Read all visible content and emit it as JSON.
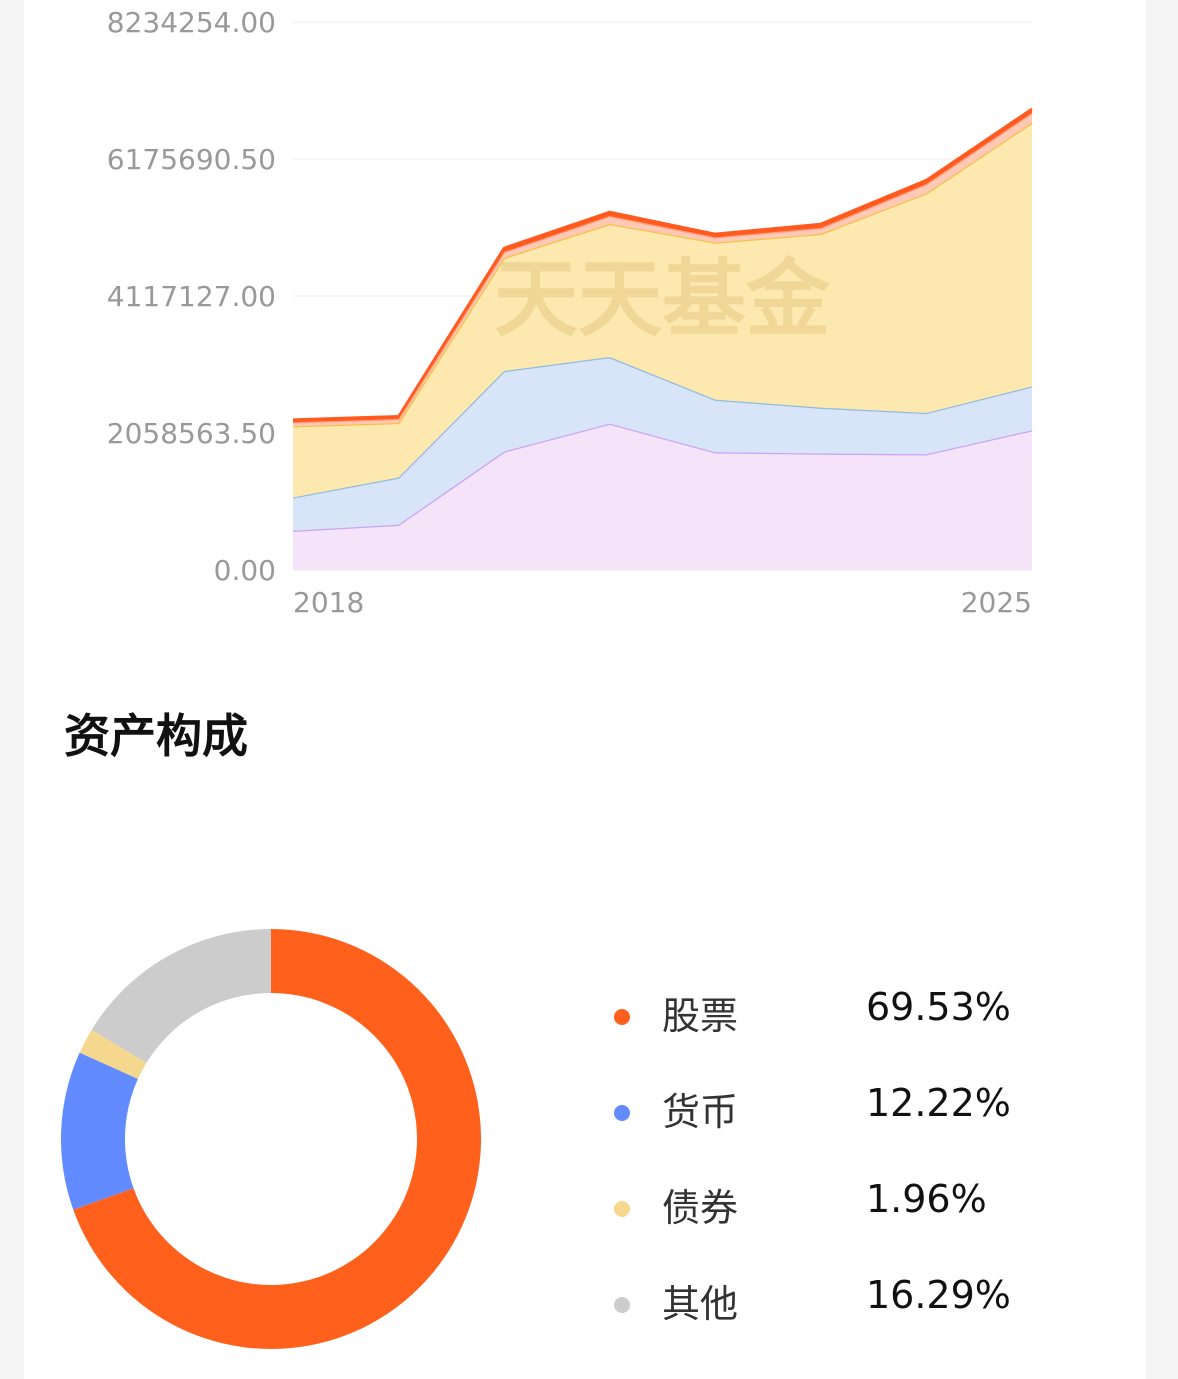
{
  "chart_data": [
    {
      "type": "area",
      "stacked": true,
      "x": [
        2018,
        2019,
        2020,
        2021,
        2022,
        2023,
        2024,
        2025
      ],
      "x_tick_labels": [
        "2018",
        "2025"
      ],
      "y_tick_labels": [
        "8234254.00",
        "6175690.50",
        "4117127.00",
        "2058563.50",
        "0.00"
      ],
      "ylim": [
        0,
        8234254
      ],
      "series": [
        {
          "values": [
            590000,
            680000,
            1780000,
            2200000,
            1770000,
            1750000,
            1740000,
            2100000
          ],
          "color": "#c9a3f5",
          "fill": "#f5e3fa"
        },
        {
          "values": [
            500000,
            710000,
            1210000,
            1000000,
            790000,
            690000,
            620000,
            660000
          ],
          "color": "#8fbbe0",
          "fill": "#d8e5f8"
        },
        {
          "values": [
            1070000,
            820000,
            1700000,
            2000000,
            2360000,
            2610000,
            3300000,
            3960000
          ],
          "color": "#f5c04a",
          "fill": "#fde9b0"
        },
        {
          "values": [
            60000,
            60000,
            90000,
            120000,
            80000,
            90000,
            140000,
            150000
          ],
          "color": "#ff9d7a",
          "fill": "#ffc9b5"
        },
        {
          "values": [
            40000,
            40000,
            60000,
            60000,
            50000,
            60000,
            60000,
            60000
          ],
          "color": "#ff5a1f",
          "fill": "#ff5a1f"
        }
      ],
      "grid": true
    },
    {
      "type": "pie",
      "donut": true,
      "start_angle": "top",
      "slices": [
        {
          "label": "股票",
          "value": 69.53,
          "display": "69.53%",
          "color": "#ff611c"
        },
        {
          "label": "货币",
          "value": 12.22,
          "display": "12.22%",
          "color": "#618bff"
        },
        {
          "label": "债券",
          "value": 1.96,
          "display": "1.96%",
          "color": "#f5d78e"
        },
        {
          "label": "其他",
          "value": 16.29,
          "display": "16.29%",
          "color": "#cccccc"
        }
      ]
    }
  ],
  "watermark": "天天基金",
  "section_title": "资产构成"
}
